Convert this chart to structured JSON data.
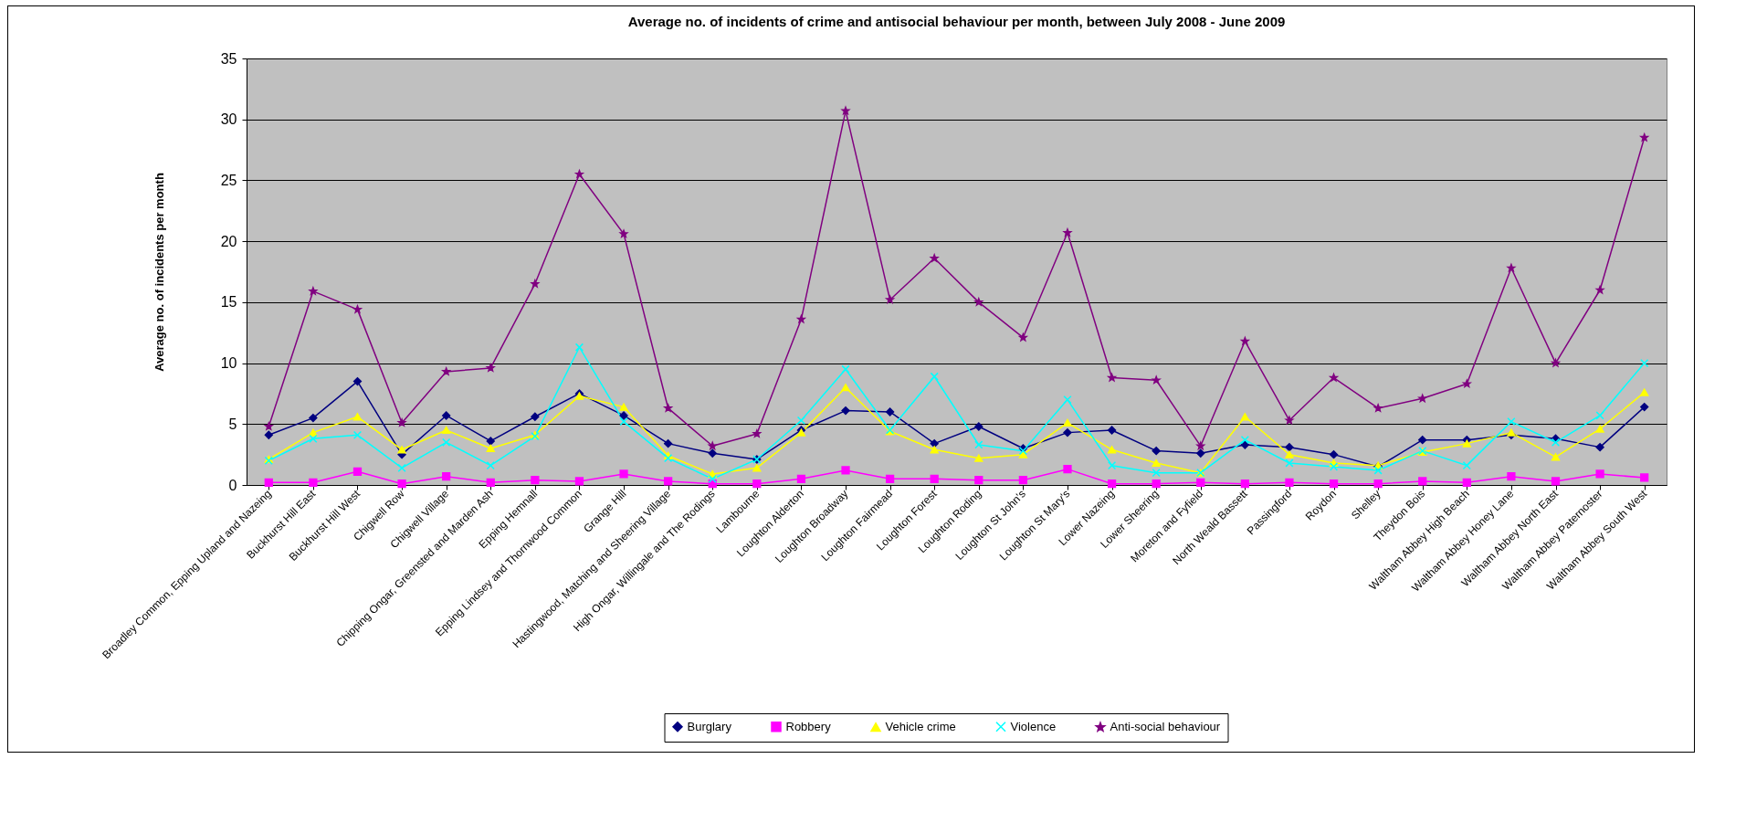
{
  "chart_data": {
    "type": "line",
    "title": "Average no. of incidents of crime and antisocial behaviour per month, between July 2008 - June 2009",
    "ylabel": "Average no. of incidents per month",
    "categories": [
      "Broadley Common, Epping Upland and Nazeing",
      "Buckhurst Hill East",
      "Buckhurst Hill West",
      "Chigwell Row",
      "Chigwell Village",
      "Chipping Ongar, Greensted and Marden Ash",
      "Epping Hemnall",
      "Epping Lindsey and Thornwood Common",
      "Grange Hill",
      "Hastingwood, Matching and Sheering Village",
      "High Ongar, Willingale and The Rodings",
      "Lambourne",
      "Loughton Alderton",
      "Loughton Broadway",
      "Loughton Fairmead",
      "Loughton Forest",
      "Loughton Roding",
      "Loughton St John's",
      "Loughton St Mary's",
      "Lower Nazeing",
      "Lower Sheering",
      "Moreton and Fyfield",
      "North Weald Bassett",
      "Passingford",
      "Roydon",
      "Shelley",
      "Theydon Bois",
      "Waltham Abbey High Beach",
      "Waltham Abbey Honey Lane",
      "Waltham Abbey North East",
      "Waltham Abbey Paternoster",
      "Waltham Abbey South West"
    ],
    "series": [
      {
        "name": "Burglary",
        "color": "#000080",
        "marker": "diamond",
        "values": [
          4.1,
          5.5,
          8.5,
          2.5,
          5.7,
          3.6,
          5.6,
          7.5,
          5.7,
          3.4,
          2.6,
          2.1,
          4.5,
          6.1,
          6.0,
          3.4,
          4.8,
          3.0,
          4.3,
          4.5,
          2.8,
          2.6,
          3.3,
          3.1,
          2.5,
          1.5,
          3.7,
          3.7,
          4.1,
          3.8,
          3.1,
          6.4
        ]
      },
      {
        "name": "Robbery",
        "color": "#ff00ff",
        "marker": "square",
        "values": [
          0.2,
          0.2,
          1.1,
          0.1,
          0.7,
          0.2,
          0.4,
          0.3,
          0.9,
          0.3,
          0.1,
          0.1,
          0.5,
          1.2,
          0.5,
          0.5,
          0.4,
          0.4,
          1.3,
          0.1,
          0.1,
          0.2,
          0.1,
          0.2,
          0.1,
          0.1,
          0.3,
          0.2,
          0.7,
          0.3,
          0.9,
          0.6
        ]
      },
      {
        "name": "Vehicle crime",
        "color": "#ffff00",
        "marker": "triangle",
        "values": [
          2.1,
          4.3,
          5.6,
          2.9,
          4.5,
          3.0,
          4.1,
          7.3,
          6.4,
          2.4,
          0.9,
          1.4,
          4.3,
          8.0,
          4.4,
          2.9,
          2.2,
          2.5,
          5.1,
          2.9,
          1.8,
          1.0,
          5.6,
          2.5,
          1.8,
          1.6,
          2.7,
          3.4,
          4.3,
          2.3,
          4.6,
          7.6
        ]
      },
      {
        "name": "Violence",
        "color": "#00ffff",
        "marker": "cross",
        "values": [
          2.0,
          3.8,
          4.1,
          1.4,
          3.5,
          1.6,
          4.0,
          11.3,
          5.2,
          2.2,
          0.5,
          2.1,
          5.3,
          9.5,
          4.5,
          8.9,
          3.3,
          2.8,
          7.0,
          1.6,
          1.0,
          1.0,
          3.7,
          1.8,
          1.5,
          1.2,
          2.8,
          1.6,
          5.2,
          3.5,
          5.7,
          10.0
        ]
      },
      {
        "name": "Anti-social behaviour",
        "color": "#800080",
        "marker": "star",
        "values": [
          4.8,
          15.9,
          14.4,
          5.1,
          9.3,
          9.6,
          16.5,
          25.5,
          20.6,
          6.3,
          3.2,
          4.2,
          13.6,
          30.7,
          15.2,
          18.6,
          15.0,
          12.1,
          20.7,
          8.8,
          8.6,
          3.2,
          11.8,
          5.3,
          8.8,
          6.3,
          7.1,
          8.3,
          17.8,
          10.0,
          16.0,
          28.5
        ]
      }
    ],
    "ylim": [
      0,
      35
    ],
    "yticks": [
      0,
      5,
      10,
      15,
      20,
      25,
      30,
      35
    ],
    "grid": "y",
    "legend": "bottom",
    "line_style": "solid"
  }
}
